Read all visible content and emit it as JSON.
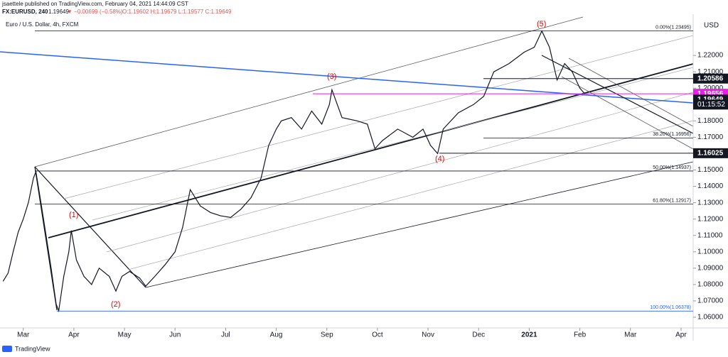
{
  "header": {
    "publisher": "jsaettele published on TradingView.com, February 04, 2021 14:44:09 CST",
    "symbol": "FX:EURUSD, 240",
    "last": "1.19649",
    "change": "▼ −0.00699 (−0.58%)",
    "ohlc": "O:1.19602 H:1.19679 L:1.19577 C:1.19649"
  },
  "footer": {
    "brand": "TradingView"
  },
  "chart_data": {
    "type": "line",
    "title": "Euro / U.S. Dollar, 4h, FXCM",
    "currency": "USD",
    "color": "#131722",
    "x": [
      -0.4,
      -0.3,
      -0.2,
      -0.1,
      0,
      0.1,
      0.2,
      0.25,
      0.35,
      0.45,
      0.55,
      0.65,
      0.7,
      0.8,
      0.9,
      0.95,
      1.05,
      1.2,
      1.35,
      1.5,
      1.7,
      1.83,
      1.95,
      2.1,
      2.3,
      2.42,
      2.6,
      2.8,
      3.0,
      3.15,
      3.3,
      3.5,
      3.7,
      3.9,
      4.1,
      4.3,
      4.5,
      4.7,
      4.85,
      5.0,
      5.1,
      5.3,
      5.5,
      5.7,
      5.9,
      6.05,
      6.1,
      6.3,
      6.6,
      6.8,
      6.95,
      7.1,
      7.4,
      7.7,
      7.9,
      8.05,
      8.19,
      8.3,
      8.6,
      8.9,
      9.1,
      9.3,
      9.6,
      9.9,
      10.1,
      10.25,
      10.4,
      10.55,
      10.7,
      10.85,
      11.0,
      11.1
    ],
    "values": [
      1.082,
      1.087,
      1.1,
      1.112,
      1.12,
      1.13,
      1.145,
      1.149,
      1.13,
      1.11,
      1.09,
      1.068,
      1.064,
      1.085,
      1.1,
      1.113,
      1.095,
      1.085,
      1.08,
      1.09,
      1.085,
      1.076,
      1.085,
      1.088,
      1.084,
      1.079,
      1.085,
      1.092,
      1.1,
      1.115,
      1.138,
      1.128,
      1.124,
      1.122,
      1.121,
      1.126,
      1.133,
      1.145,
      1.165,
      1.175,
      1.18,
      1.182,
      1.175,
      1.186,
      1.178,
      1.19,
      1.199,
      1.182,
      1.18,
      1.178,
      1.163,
      1.168,
      1.175,
      1.17,
      1.175,
      1.165,
      1.16,
      1.175,
      1.185,
      1.19,
      1.195,
      1.21,
      1.215,
      1.222,
      1.225,
      1.2349,
      1.225,
      1.205,
      1.215,
      1.21,
      1.2,
      1.1965
    ],
    "xlim": [
      -0.46,
      13.24
    ],
    "ylim": [
      1.0535,
      1.2452
    ],
    "xticks": [
      {
        "value": 0,
        "label": "Mar"
      },
      {
        "value": 1,
        "label": "Apr"
      },
      {
        "value": 2,
        "label": "May"
      },
      {
        "value": 3,
        "label": "Jun"
      },
      {
        "value": 4,
        "label": "Jul"
      },
      {
        "value": 5,
        "label": "Aug"
      },
      {
        "value": 6,
        "label": "Sep"
      },
      {
        "value": 7,
        "label": "Oct"
      },
      {
        "value": 8,
        "label": "Nov"
      },
      {
        "value": 9,
        "label": "Dec"
      },
      {
        "value": 10,
        "label": "2021"
      },
      {
        "value": 11,
        "label": "Feb"
      },
      {
        "value": 12,
        "label": "Mar"
      },
      {
        "value": 13,
        "label": "Apr"
      }
    ],
    "yticks": [
      {
        "value": 1.06,
        "label": "1.06000"
      },
      {
        "value": 1.07,
        "label": "1.07000"
      },
      {
        "value": 1.08,
        "label": "1.08000"
      },
      {
        "value": 1.09,
        "label": "1.09000"
      },
      {
        "value": 1.1,
        "label": "1.10000"
      },
      {
        "value": 1.11,
        "label": "1.11000"
      },
      {
        "value": 1.12,
        "label": "1.12000"
      },
      {
        "value": 1.13,
        "label": "1.13000"
      },
      {
        "value": 1.14,
        "label": "1.14000"
      },
      {
        "value": 1.15,
        "label": "1.15000"
      },
      {
        "value": 1.16,
        "label": "1.16000"
      },
      {
        "value": 1.17,
        "label": "1.17000"
      },
      {
        "value": 1.18,
        "label": "1.18000"
      },
      {
        "value": 1.19,
        "label": "1.19000"
      },
      {
        "value": 1.2,
        "label": "1.20000"
      },
      {
        "value": 1.21,
        "label": "1.21000"
      },
      {
        "value": 1.22,
        "label": "1.22000"
      }
    ],
    "fib_levels": [
      {
        "value": 1.23495,
        "label": "0.00%(1.23495)",
        "color": "#131722"
      },
      {
        "value": 1.16956,
        "label": "38.20%(1.16956)",
        "color": "#131722"
      },
      {
        "value": 1.14937,
        "label": "50.00%(1.14937)",
        "color": "#131722"
      },
      {
        "value": 1.12917,
        "label": "61.80%(1.12917)",
        "color": "#131722"
      },
      {
        "value": 1.06378,
        "label": "100.00%(1.06378)",
        "color": "#2962ff"
      }
    ],
    "price_labels": [
      {
        "value": 1.20586,
        "label": "1.20586",
        "color": "#131722"
      },
      {
        "value": 1.19656,
        "label": "1.19656",
        "color": "#e91ee9"
      },
      {
        "value": 1.19649,
        "label": "1.19649",
        "color": "#131722"
      },
      {
        "value": 1.16025,
        "label": "1.16025",
        "color": "#131722"
      }
    ],
    "countdown": "01:15:52",
    "waves": [
      "(1)",
      "(2)",
      "(3)",
      "(4)",
      "(5)"
    ]
  }
}
